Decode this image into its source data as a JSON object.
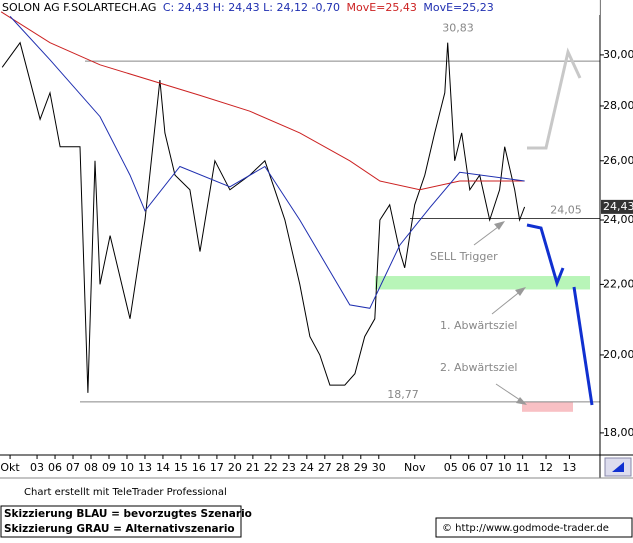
{
  "chart_data": {
    "type": "line",
    "log_scale": true,
    "quote": "C: 24,43 H: 24,43 L: 24,12 -0,70",
    "xlim": [
      -1.06,
      32.3
    ],
    "ylim": [
      17.47,
      32.31
    ],
    "xticks": [
      {
        "value": -0.5,
        "label": "Okt"
      },
      {
        "value": 1,
        "label": "03"
      },
      {
        "value": 2,
        "label": "06"
      },
      {
        "value": 3,
        "label": "07"
      },
      {
        "value": 4,
        "label": "08"
      },
      {
        "value": 5,
        "label": "09"
      },
      {
        "value": 6,
        "label": "10"
      },
      {
        "value": 7,
        "label": "13"
      },
      {
        "value": 8,
        "label": "14"
      },
      {
        "value": 9,
        "label": "15"
      },
      {
        "value": 10,
        "label": "16"
      },
      {
        "value": 11,
        "label": "17"
      },
      {
        "value": 12,
        "label": "20"
      },
      {
        "value": 13,
        "label": "21"
      },
      {
        "value": 14,
        "label": "22"
      },
      {
        "value": 15,
        "label": "23"
      },
      {
        "value": 16,
        "label": "24"
      },
      {
        "value": 17,
        "label": "27"
      },
      {
        "value": 18,
        "label": "28"
      },
      {
        "value": 19,
        "label": "29"
      },
      {
        "value": 20,
        "label": "30"
      },
      {
        "value": 22,
        "label": "Nov"
      },
      {
        "value": 24,
        "label": "05"
      },
      {
        "value": 25,
        "label": "06"
      },
      {
        "value": 26,
        "label": "07"
      },
      {
        "value": 27,
        "label": "10"
      },
      {
        "value": 28,
        "label": "11"
      },
      {
        "value": 29.3,
        "label": "12"
      },
      {
        "value": 30.6,
        "label": "13"
      }
    ],
    "yticks": [
      {
        "value": 18,
        "label": "18,00"
      },
      {
        "value": 20,
        "label": "20,00"
      },
      {
        "value": 22,
        "label": "22,00"
      },
      {
        "value": 24,
        "label": "24,00"
      },
      {
        "value": 26,
        "label": "26,00"
      },
      {
        "value": 28,
        "label": "28,00"
      },
      {
        "value": 30,
        "label": "30,00"
      }
    ],
    "last_price": {
      "value": 24.43,
      "label": "24,43"
    },
    "series": [
      {
        "name": "SOLON AG F.SOLARTECH.AG",
        "color": "#000000",
        "x": [
          -0.94,
          0.06,
          1.17,
          1.72,
          2.28,
          3.39,
          3.83,
          4.22,
          4.5,
          5.06,
          6.17,
          7,
          7.83,
          8.11,
          8.67,
          9.5,
          10.06,
          10.89,
          11.72,
          12.83,
          13.67,
          14.22,
          14.78,
          15.61,
          16.17,
          16.72,
          17.28,
          18.11,
          18.67,
          19.22,
          19.78,
          20.06,
          20.61,
          21.17,
          21.44,
          22,
          22.56,
          23.11,
          23.67,
          23.83,
          24.22,
          24.61,
          25.06,
          25.61,
          26.17,
          26.72,
          27,
          27.56,
          27.83,
          28.11
        ],
        "values": [
          29.5,
          30.5,
          27.5,
          28.5,
          26.5,
          26.5,
          19,
          26,
          22,
          23.5,
          21,
          24,
          29,
          27,
          25.5,
          25,
          23,
          26,
          25,
          25.5,
          26,
          25,
          24,
          22,
          20.5,
          20,
          19.2,
          19.2,
          19.5,
          20.5,
          21,
          24,
          24.5,
          23,
          22.5,
          24.5,
          25.5,
          27,
          28.5,
          30.5,
          26,
          27,
          25,
          25.5,
          24,
          25,
          26.5,
          25,
          24,
          24.43
        ]
      },
      {
        "name": "MovE=25,43",
        "color": "#cc2222",
        "x": [
          -1,
          1.72,
          4.5,
          10.06,
          12.83,
          15.61,
          18.39,
          20.06,
          22.28,
          24.5,
          28.11
        ],
        "values": [
          31.8,
          30.5,
          29.6,
          28.4,
          27.8,
          27,
          26,
          25.3,
          25,
          25.3,
          25.3
        ]
      },
      {
        "name": "MovE=25,23",
        "color": "#1f2fb0",
        "x": [
          -0.5,
          1.72,
          4.5,
          6.17,
          7,
          8.94,
          11.72,
          13.67,
          15.61,
          17.28,
          18.39,
          19.5,
          21.17,
          22.83,
          24.5,
          28.11
        ],
        "values": [
          31.6,
          29.8,
          27.6,
          25.5,
          24.3,
          25.8,
          25.1,
          25.8,
          24,
          22.4,
          21.4,
          21.3,
          23.2,
          24.4,
          25.6,
          25.3
        ]
      }
    ],
    "levels": [
      {
        "value": 29.75
      },
      {
        "value": 24.05,
        "label": "24,05"
      },
      {
        "value": 18.77,
        "label": "18,77"
      }
    ],
    "peak_label": {
      "value": 30.83,
      "label": "30,83"
    },
    "zones": [
      {
        "range": [
          21.85,
          22.25
        ],
        "color": "#b8f5b8"
      },
      {
        "range": [
          18.52,
          18.77
        ],
        "color": "#f8c0c4"
      }
    ],
    "annotations": [
      "SELL Trigger",
      "1. Abwärtsziel",
      "2. Abwärtsziel"
    ],
    "footer": {
      "credit": "Chart erstellt mit TeleTrader Professional",
      "blue": "Skizzierung BLAU = bevorzugtes Szenario",
      "gray": "Skizzierung GRAU = Alternativszenario",
      "source": "© http://www.godmode-trader.de"
    }
  }
}
